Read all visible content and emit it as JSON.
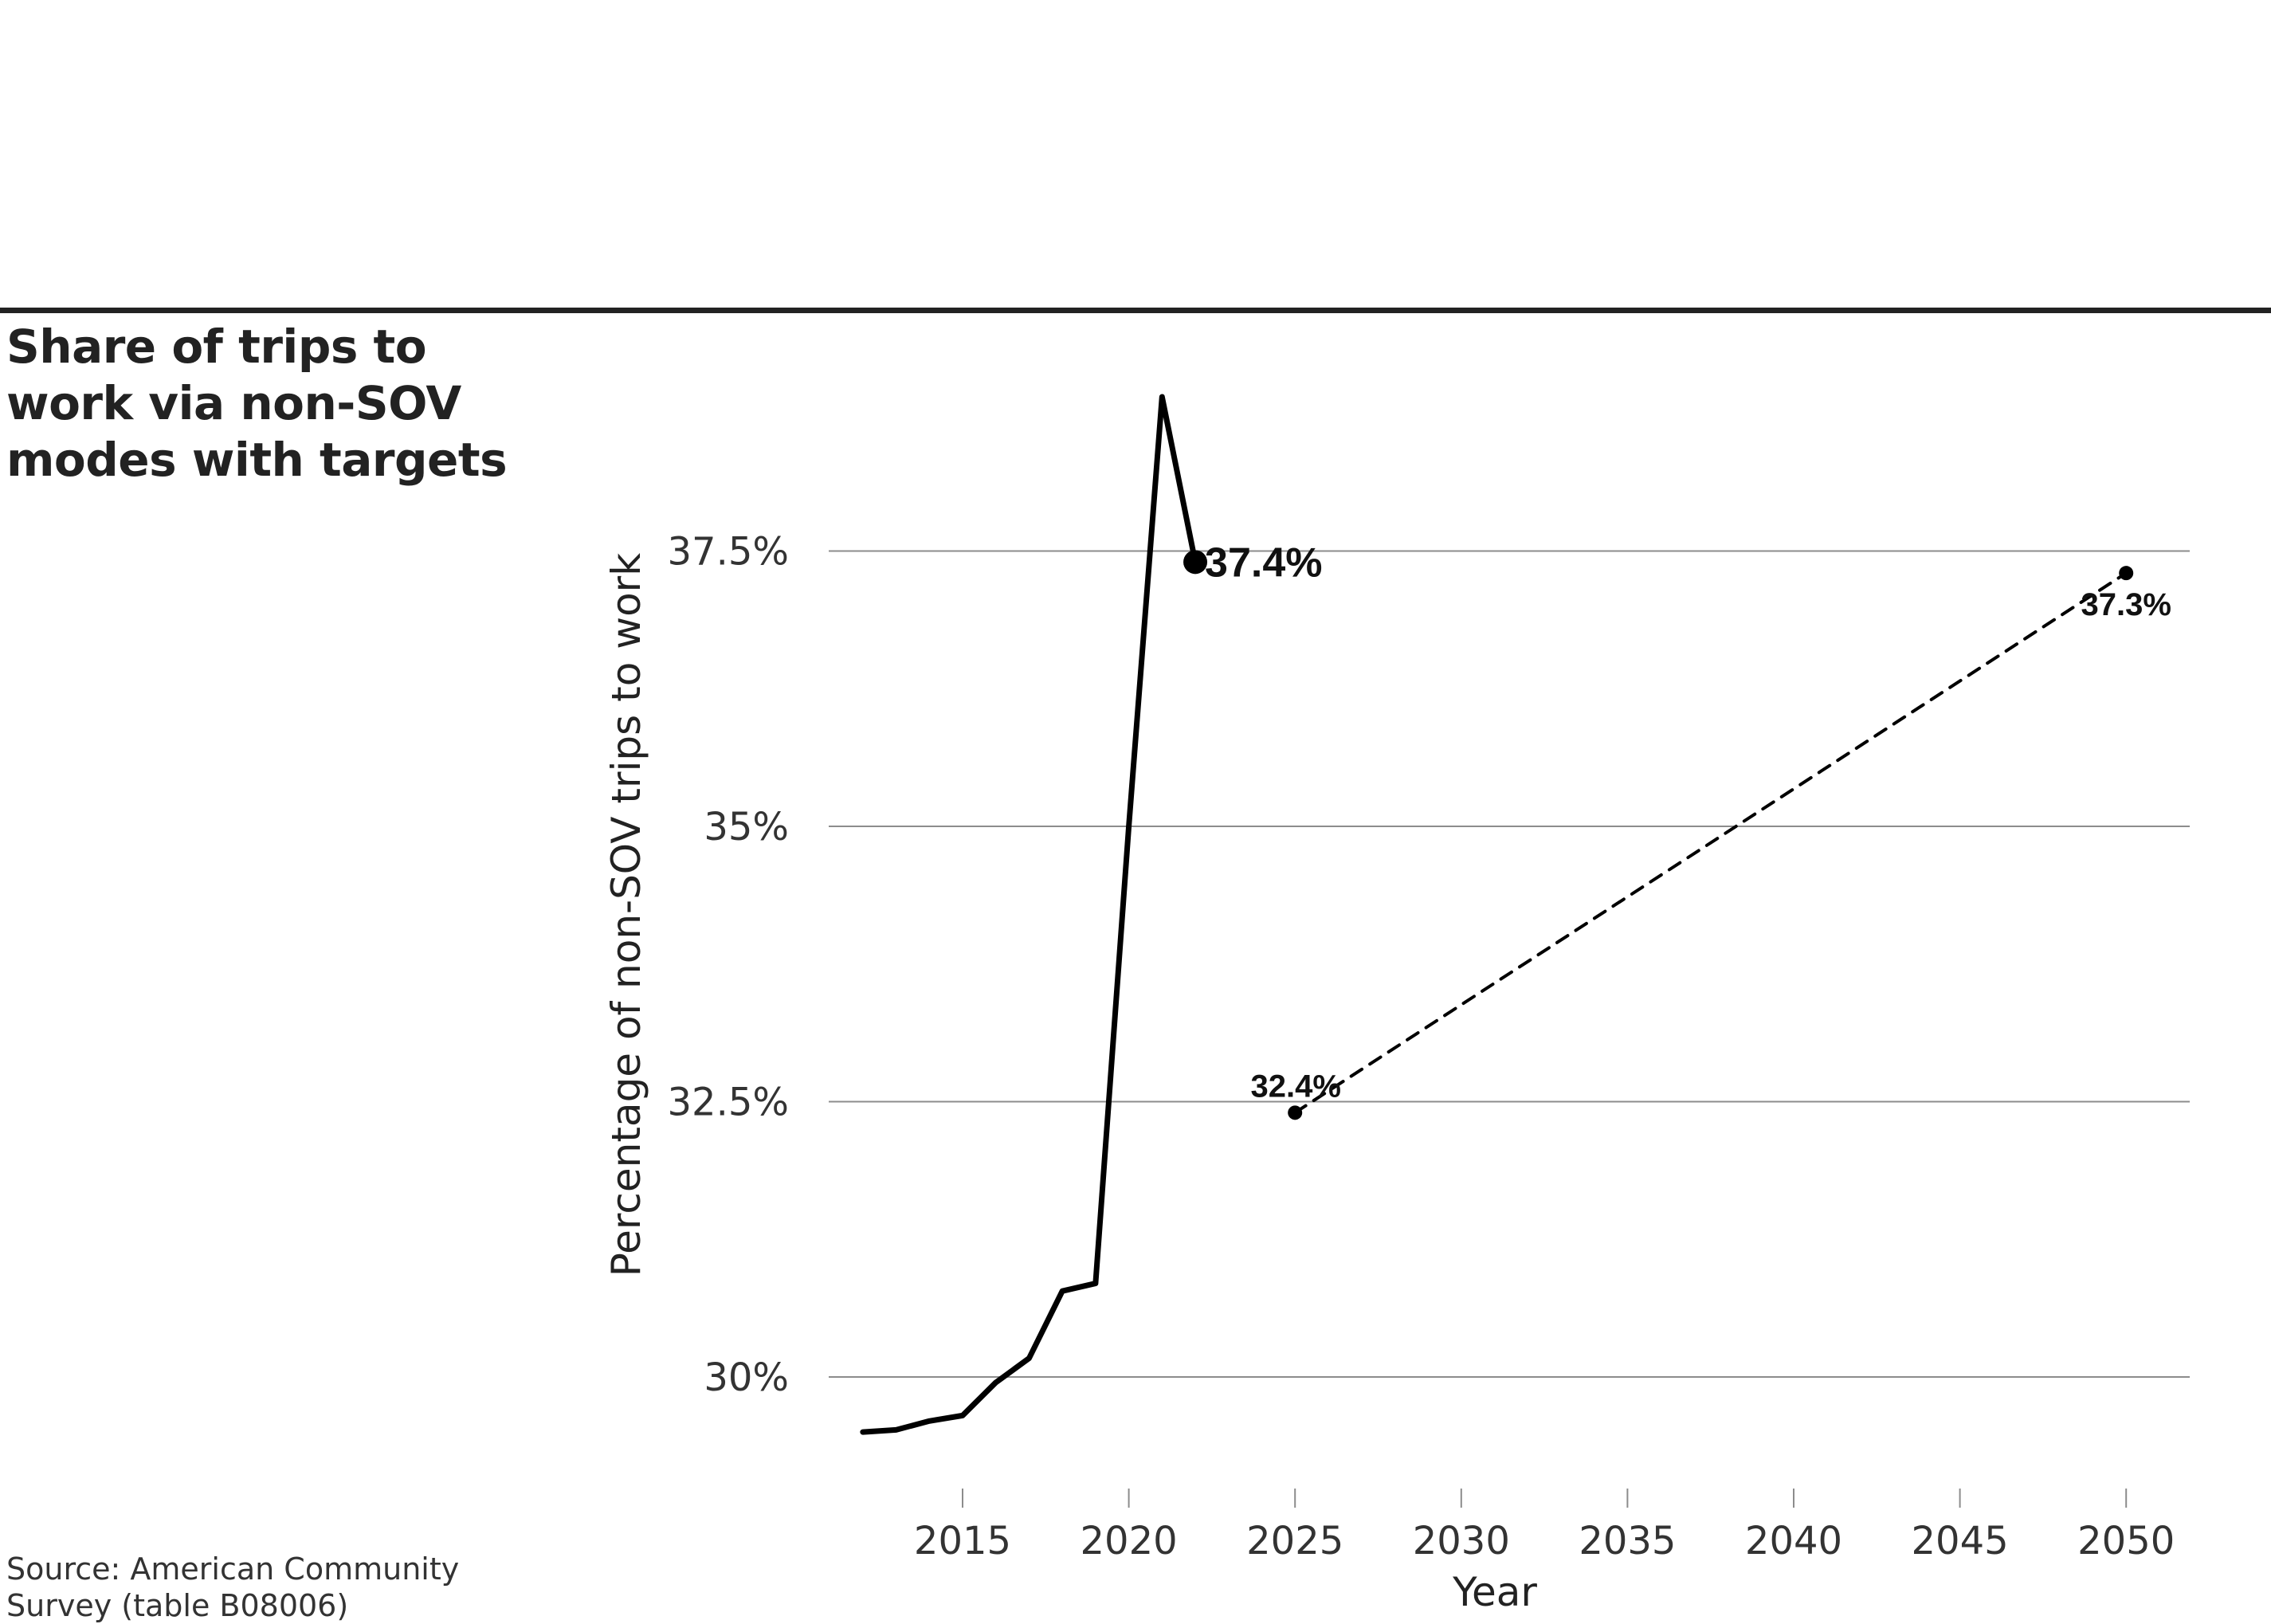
{
  "chart_data": {
    "type": "line",
    "title": "Share of trips to work via non-SOV modes with targets",
    "source": "Source: American Community Survey (table B08006)",
    "xlabel": "Year",
    "ylabel": "Percentage of non-SOV trips to work",
    "xlim": [
      2011,
      2052
    ],
    "ylim": [
      29.0,
      39.8
    ],
    "x_ticks": [
      2015,
      2020,
      2025,
      2030,
      2035,
      2040,
      2045,
      2050
    ],
    "y_ticks": [
      30,
      32.5,
      35,
      37.5
    ],
    "y_tick_labels": [
      "30%",
      "32.5%",
      "35%",
      "37.5%"
    ],
    "grid": "horizontal",
    "colors": {
      "line": "#000000",
      "grid": "#8c8c8c",
      "rule": "#222222"
    },
    "series": [
      {
        "style": "solid",
        "x": [
          2012,
          2013,
          2014,
          2015,
          2016,
          2017,
          2018,
          2019,
          2020,
          2021,
          2022
        ],
        "y": [
          29.5,
          29.52,
          29.6,
          29.65,
          29.95,
          30.17,
          30.78,
          30.85,
          35.0,
          38.9,
          37.4
        ],
        "end_label": "37.4%"
      },
      {
        "style": "dashed",
        "x": [
          2025,
          2050
        ],
        "y": [
          32.4,
          37.3
        ],
        "point_labels": [
          "32.4%",
          "37.3%"
        ]
      }
    ]
  }
}
